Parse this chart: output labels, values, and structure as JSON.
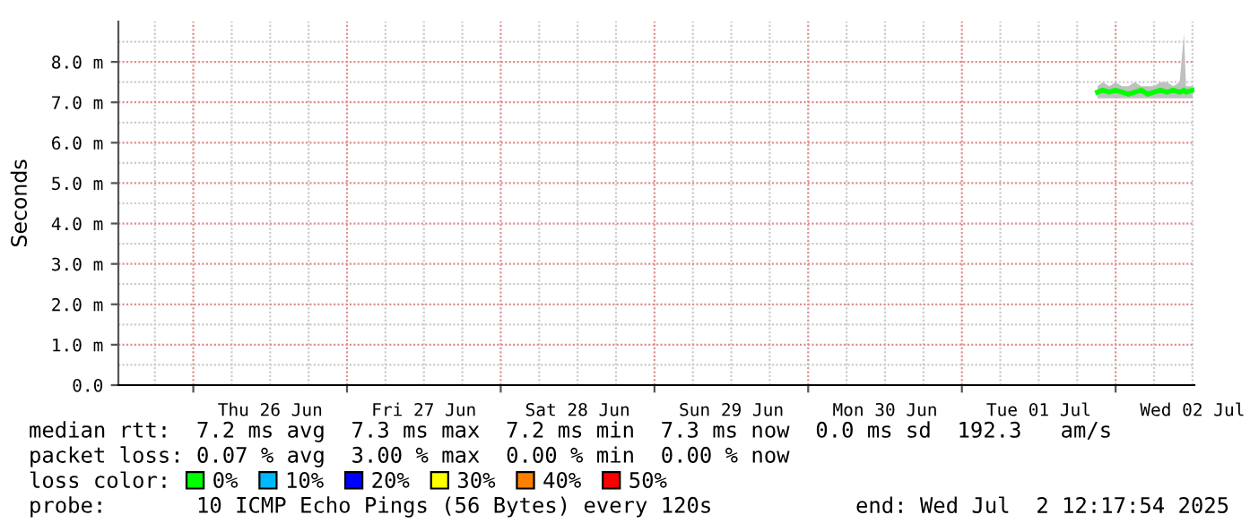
{
  "chart_data": {
    "type": "line",
    "ylabel": "Seconds",
    "legend_title": "loss color:",
    "x": [
      "2025-07-01T21:10",
      "2025-07-01T22:00",
      "2025-07-01T23:00",
      "2025-07-02T00:00",
      "2025-07-02T01:00",
      "2025-07-02T02:00",
      "2025-07-02T03:00",
      "2025-07-02T04:00",
      "2025-07-02T05:00",
      "2025-07-02T06:00",
      "2025-07-02T07:00",
      "2025-07-02T08:00",
      "2025-07-02T09:00",
      "2025-07-02T10:00",
      "2025-07-02T10:40",
      "2025-07-02T11:00",
      "2025-07-02T12:00"
    ],
    "series": [
      {
        "name": "0%",
        "color": "#00ff00",
        "values": [
          7.25,
          7.3,
          7.25,
          7.3,
          7.25,
          7.2,
          7.25,
          7.3,
          7.2,
          7.25,
          7.3,
          7.25,
          7.3,
          7.25,
          7.3,
          7.25,
          7.3
        ],
        "lower": [
          7.1,
          7.1,
          7.1,
          7.1,
          7.1,
          7.1,
          7.1,
          7.1,
          7.1,
          7.1,
          7.1,
          7.1,
          7.1,
          7.1,
          7.1,
          7.1,
          7.1
        ],
        "upper": [
          7.4,
          7.5,
          7.4,
          7.5,
          7.4,
          7.4,
          7.5,
          7.4,
          7.4,
          7.4,
          7.5,
          7.5,
          7.4,
          7.5,
          8.7,
          7.4,
          7.4
        ]
      },
      {
        "name": "10%",
        "color": "#00b8ff",
        "values": [
          null,
          null,
          null,
          null,
          null,
          null,
          null,
          null,
          null,
          null,
          null,
          null,
          null,
          null,
          null,
          null,
          null
        ]
      },
      {
        "name": "20%",
        "color": "#0000ff",
        "values": [
          null,
          null,
          null,
          null,
          null,
          null,
          null,
          null,
          null,
          null,
          null,
          null,
          null,
          null,
          null,
          null,
          null
        ]
      },
      {
        "name": "30%",
        "color": "#ffff00",
        "values": [
          null,
          null,
          null,
          null,
          null,
          null,
          null,
          null,
          null,
          null,
          null,
          null,
          null,
          null,
          null,
          null,
          null
        ]
      },
      {
        "name": "40%",
        "color": "#ff8000",
        "values": [
          null,
          null,
          null,
          null,
          null,
          null,
          null,
          null,
          null,
          null,
          null,
          null,
          null,
          null,
          null,
          null,
          null
        ]
      },
      {
        "name": "50%",
        "color": "#ff0000",
        "values": [
          null,
          null,
          null,
          null,
          null,
          null,
          null,
          null,
          null,
          null,
          null,
          null,
          null,
          null,
          null,
          null,
          null
        ]
      }
    ],
    "xlim": [
      "2025-06-25T12:18",
      "2025-07-02T12:18"
    ],
    "xticks": [
      {
        "value": "2025-06-26T00:00",
        "label": null
      },
      {
        "value": "2025-06-26T12:00",
        "label": "Thu 26 Jun"
      },
      {
        "value": "2025-06-27T00:00",
        "label": null
      },
      {
        "value": "2025-06-27T12:00",
        "label": "Fri 27 Jun"
      },
      {
        "value": "2025-06-28T00:00",
        "label": null
      },
      {
        "value": "2025-06-28T12:00",
        "label": "Sat 28 Jun"
      },
      {
        "value": "2025-06-29T00:00",
        "label": null
      },
      {
        "value": "2025-06-29T12:00",
        "label": "Sun 29 Jun"
      },
      {
        "value": "2025-06-30T00:00",
        "label": null
      },
      {
        "value": "2025-06-30T12:00",
        "label": "Mon 30 Jun"
      },
      {
        "value": "2025-07-01T00:00",
        "label": null
      },
      {
        "value": "2025-07-01T12:00",
        "label": "Tue 01 Jul"
      },
      {
        "value": "2025-07-02T00:00",
        "label": null
      },
      {
        "value": "2025-07-02T12:00",
        "label": "Wed 02 Jul"
      }
    ],
    "ylim": [
      0,
      9
    ],
    "yticks": [
      {
        "value": 0,
        "label": "0.0"
      },
      {
        "value": 1,
        "label": "1.0 m"
      },
      {
        "value": 2,
        "label": "2.0 m"
      },
      {
        "value": 3,
        "label": "3.0 m"
      },
      {
        "value": 4,
        "label": "4.0 m"
      },
      {
        "value": 5,
        "label": "5.0 m"
      },
      {
        "value": 6,
        "label": "6.0 m"
      },
      {
        "value": 7,
        "label": "7.0 m"
      },
      {
        "value": 8,
        "label": "8.0 m"
      }
    ],
    "grid": true,
    "legend": "bottom",
    "marker": "none",
    "line_style": "solid",
    "annotations": [
      "median rtt:  7.2 ms avg  7.3 ms max  7.2 ms min  7.3 ms now  0.0 ms sd  192.3   am/s",
      "packet loss: 0.07 % avg  3.00 % max  0.00 % min  0.00 % now",
      "probe:       10 ICMP Echo Pings (56 Bytes) every 120s",
      "end: Wed Jul  2 12:17:54 2025"
    ]
  }
}
